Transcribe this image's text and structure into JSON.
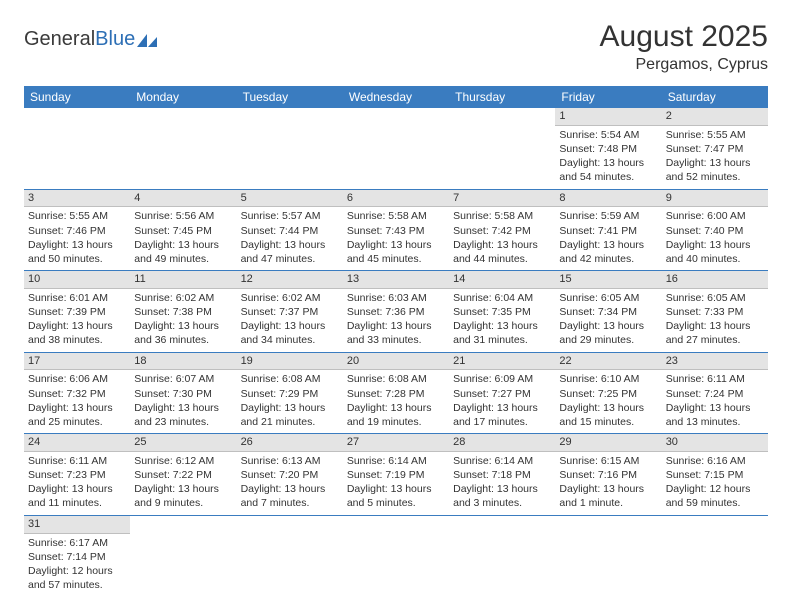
{
  "logo": {
    "text_dark": "General",
    "text_blue": "Blue"
  },
  "title": "August 2025",
  "location": "Pergamos, Cyprus",
  "colors": {
    "header_bg": "#3a7cc0",
    "header_text": "#ffffff",
    "daynum_bg": "#e4e4e4",
    "cell_border": "#3a7cc0",
    "logo_blue": "#2d6fb5"
  },
  "weekdays": [
    "Sunday",
    "Monday",
    "Tuesday",
    "Wednesday",
    "Thursday",
    "Friday",
    "Saturday"
  ],
  "weeks": [
    [
      null,
      null,
      null,
      null,
      null,
      {
        "n": "1",
        "sunrise": "Sunrise: 5:54 AM",
        "sunset": "Sunset: 7:48 PM",
        "daylight": "Daylight: 13 hours and 54 minutes."
      },
      {
        "n": "2",
        "sunrise": "Sunrise: 5:55 AM",
        "sunset": "Sunset: 7:47 PM",
        "daylight": "Daylight: 13 hours and 52 minutes."
      }
    ],
    [
      {
        "n": "3",
        "sunrise": "Sunrise: 5:55 AM",
        "sunset": "Sunset: 7:46 PM",
        "daylight": "Daylight: 13 hours and 50 minutes."
      },
      {
        "n": "4",
        "sunrise": "Sunrise: 5:56 AM",
        "sunset": "Sunset: 7:45 PM",
        "daylight": "Daylight: 13 hours and 49 minutes."
      },
      {
        "n": "5",
        "sunrise": "Sunrise: 5:57 AM",
        "sunset": "Sunset: 7:44 PM",
        "daylight": "Daylight: 13 hours and 47 minutes."
      },
      {
        "n": "6",
        "sunrise": "Sunrise: 5:58 AM",
        "sunset": "Sunset: 7:43 PM",
        "daylight": "Daylight: 13 hours and 45 minutes."
      },
      {
        "n": "7",
        "sunrise": "Sunrise: 5:58 AM",
        "sunset": "Sunset: 7:42 PM",
        "daylight": "Daylight: 13 hours and 44 minutes."
      },
      {
        "n": "8",
        "sunrise": "Sunrise: 5:59 AM",
        "sunset": "Sunset: 7:41 PM",
        "daylight": "Daylight: 13 hours and 42 minutes."
      },
      {
        "n": "9",
        "sunrise": "Sunrise: 6:00 AM",
        "sunset": "Sunset: 7:40 PM",
        "daylight": "Daylight: 13 hours and 40 minutes."
      }
    ],
    [
      {
        "n": "10",
        "sunrise": "Sunrise: 6:01 AM",
        "sunset": "Sunset: 7:39 PM",
        "daylight": "Daylight: 13 hours and 38 minutes."
      },
      {
        "n": "11",
        "sunrise": "Sunrise: 6:02 AM",
        "sunset": "Sunset: 7:38 PM",
        "daylight": "Daylight: 13 hours and 36 minutes."
      },
      {
        "n": "12",
        "sunrise": "Sunrise: 6:02 AM",
        "sunset": "Sunset: 7:37 PM",
        "daylight": "Daylight: 13 hours and 34 minutes."
      },
      {
        "n": "13",
        "sunrise": "Sunrise: 6:03 AM",
        "sunset": "Sunset: 7:36 PM",
        "daylight": "Daylight: 13 hours and 33 minutes."
      },
      {
        "n": "14",
        "sunrise": "Sunrise: 6:04 AM",
        "sunset": "Sunset: 7:35 PM",
        "daylight": "Daylight: 13 hours and 31 minutes."
      },
      {
        "n": "15",
        "sunrise": "Sunrise: 6:05 AM",
        "sunset": "Sunset: 7:34 PM",
        "daylight": "Daylight: 13 hours and 29 minutes."
      },
      {
        "n": "16",
        "sunrise": "Sunrise: 6:05 AM",
        "sunset": "Sunset: 7:33 PM",
        "daylight": "Daylight: 13 hours and 27 minutes."
      }
    ],
    [
      {
        "n": "17",
        "sunrise": "Sunrise: 6:06 AM",
        "sunset": "Sunset: 7:32 PM",
        "daylight": "Daylight: 13 hours and 25 minutes."
      },
      {
        "n": "18",
        "sunrise": "Sunrise: 6:07 AM",
        "sunset": "Sunset: 7:30 PM",
        "daylight": "Daylight: 13 hours and 23 minutes."
      },
      {
        "n": "19",
        "sunrise": "Sunrise: 6:08 AM",
        "sunset": "Sunset: 7:29 PM",
        "daylight": "Daylight: 13 hours and 21 minutes."
      },
      {
        "n": "20",
        "sunrise": "Sunrise: 6:08 AM",
        "sunset": "Sunset: 7:28 PM",
        "daylight": "Daylight: 13 hours and 19 minutes."
      },
      {
        "n": "21",
        "sunrise": "Sunrise: 6:09 AM",
        "sunset": "Sunset: 7:27 PM",
        "daylight": "Daylight: 13 hours and 17 minutes."
      },
      {
        "n": "22",
        "sunrise": "Sunrise: 6:10 AM",
        "sunset": "Sunset: 7:25 PM",
        "daylight": "Daylight: 13 hours and 15 minutes."
      },
      {
        "n": "23",
        "sunrise": "Sunrise: 6:11 AM",
        "sunset": "Sunset: 7:24 PM",
        "daylight": "Daylight: 13 hours and 13 minutes."
      }
    ],
    [
      {
        "n": "24",
        "sunrise": "Sunrise: 6:11 AM",
        "sunset": "Sunset: 7:23 PM",
        "daylight": "Daylight: 13 hours and 11 minutes."
      },
      {
        "n": "25",
        "sunrise": "Sunrise: 6:12 AM",
        "sunset": "Sunset: 7:22 PM",
        "daylight": "Daylight: 13 hours and 9 minutes."
      },
      {
        "n": "26",
        "sunrise": "Sunrise: 6:13 AM",
        "sunset": "Sunset: 7:20 PM",
        "daylight": "Daylight: 13 hours and 7 minutes."
      },
      {
        "n": "27",
        "sunrise": "Sunrise: 6:14 AM",
        "sunset": "Sunset: 7:19 PM",
        "daylight": "Daylight: 13 hours and 5 minutes."
      },
      {
        "n": "28",
        "sunrise": "Sunrise: 6:14 AM",
        "sunset": "Sunset: 7:18 PM",
        "daylight": "Daylight: 13 hours and 3 minutes."
      },
      {
        "n": "29",
        "sunrise": "Sunrise: 6:15 AM",
        "sunset": "Sunset: 7:16 PM",
        "daylight": "Daylight: 13 hours and 1 minute."
      },
      {
        "n": "30",
        "sunrise": "Sunrise: 6:16 AM",
        "sunset": "Sunset: 7:15 PM",
        "daylight": "Daylight: 12 hours and 59 minutes."
      }
    ],
    [
      {
        "n": "31",
        "sunrise": "Sunrise: 6:17 AM",
        "sunset": "Sunset: 7:14 PM",
        "daylight": "Daylight: 12 hours and 57 minutes."
      },
      null,
      null,
      null,
      null,
      null,
      null
    ]
  ]
}
